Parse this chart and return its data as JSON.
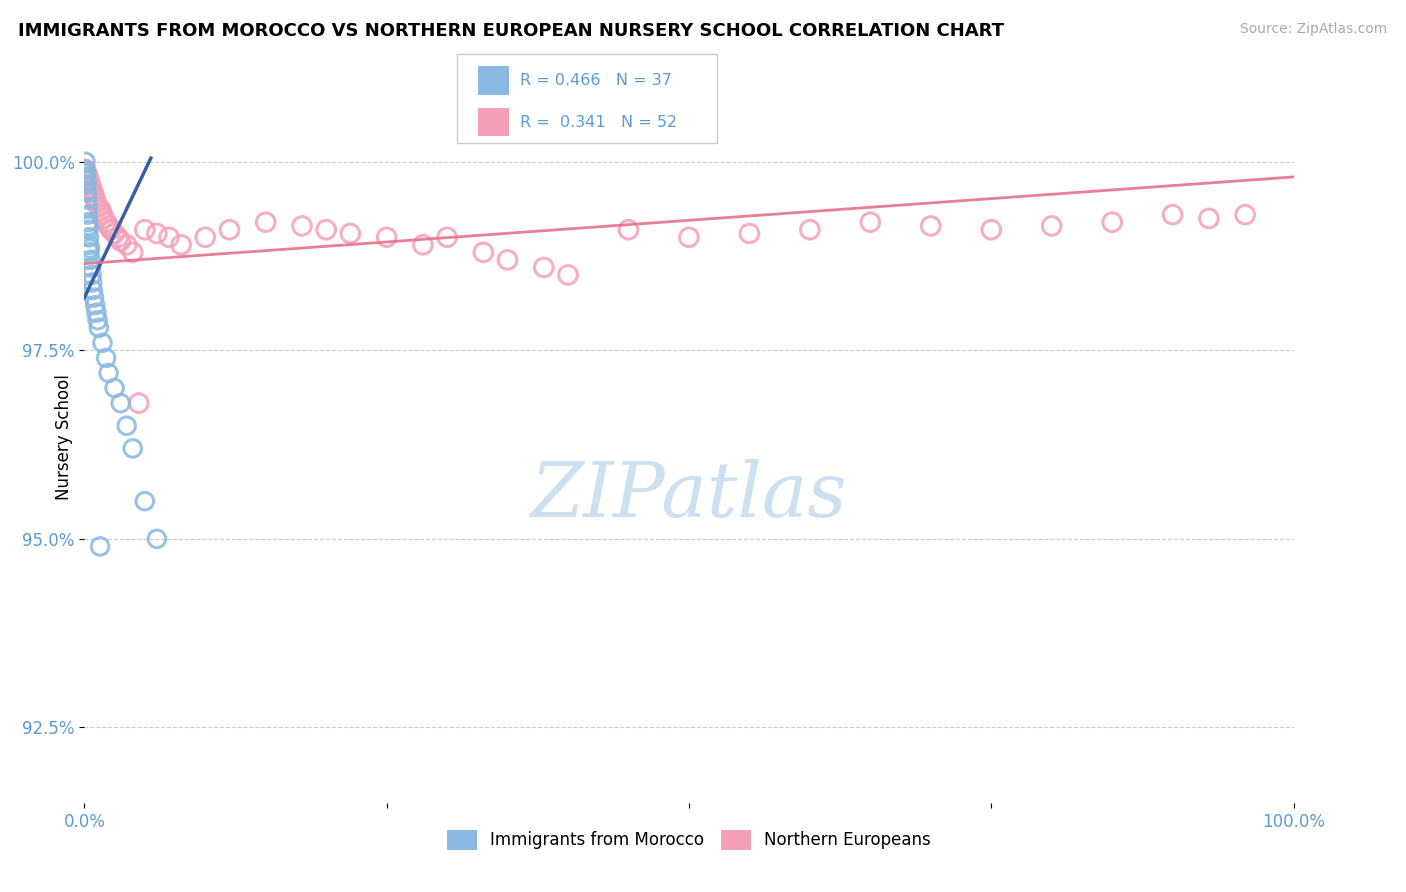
{
  "title": "IMMIGRANTS FROM MOROCCO VS NORTHERN EUROPEAN NURSERY SCHOOL CORRELATION CHART",
  "source": "Source: ZipAtlas.com",
  "ylabel": "Nursery School",
  "y_ticks": [
    92.5,
    95.0,
    97.5,
    100.0
  ],
  "y_tick_labels": [
    "92.5%",
    "95.0%",
    "97.5%",
    "100.0%"
  ],
  "x_range": [
    0.0,
    100.0
  ],
  "y_range": [
    91.5,
    101.2
  ],
  "blue_color": "#89b8e0",
  "pink_color": "#f4a0b8",
  "blue_line_color": "#3a5fa0",
  "pink_line_color": "#e8708a",
  "watermark_color": "#cce0f0",
  "title_color": "#000000",
  "source_color": "#aaaaaa",
  "tick_color": "#5b9bd5",
  "grid_color": "#cccccc",
  "blue_x": [
    0.05,
    0.08,
    0.1,
    0.12,
    0.15,
    0.18,
    0.2,
    0.22,
    0.25,
    0.28,
    0.3,
    0.32,
    0.35,
    0.38,
    0.4,
    0.42,
    0.45,
    0.5,
    0.55,
    0.6,
    0.65,
    0.7,
    0.8,
    0.9,
    1.0,
    1.1,
    1.2,
    1.5,
    1.8,
    2.0,
    2.5,
    3.0,
    3.5,
    4.0,
    5.0,
    6.0,
    1.3
  ],
  "blue_y": [
    99.9,
    99.8,
    100.0,
    99.85,
    99.7,
    99.75,
    99.6,
    99.5,
    99.4,
    99.3,
    99.2,
    99.15,
    99.1,
    99.0,
    98.9,
    98.8,
    98.85,
    98.7,
    98.6,
    98.5,
    98.4,
    98.3,
    98.2,
    98.1,
    98.0,
    97.9,
    97.8,
    97.6,
    97.4,
    97.2,
    97.0,
    96.8,
    96.5,
    96.2,
    95.5,
    95.0,
    94.9
  ],
  "pink_x": [
    0.1,
    0.2,
    0.3,
    0.4,
    0.5,
    0.6,
    0.7,
    0.8,
    0.9,
    1.0,
    1.2,
    1.4,
    1.5,
    1.6,
    1.8,
    2.0,
    2.2,
    2.5,
    2.8,
    3.0,
    3.5,
    4.0,
    5.0,
    6.0,
    7.0,
    8.0,
    10.0,
    12.0,
    15.0,
    18.0,
    20.0,
    22.0,
    25.0,
    28.0,
    30.0,
    33.0,
    35.0,
    38.0,
    40.0,
    45.0,
    50.0,
    55.0,
    60.0,
    65.0,
    70.0,
    75.0,
    80.0,
    85.0,
    90.0,
    93.0,
    96.0,
    4.5
  ],
  "pink_y": [
    99.9,
    99.85,
    99.8,
    99.75,
    99.7,
    99.65,
    99.6,
    99.55,
    99.5,
    99.45,
    99.4,
    99.35,
    99.3,
    99.25,
    99.2,
    99.15,
    99.1,
    99.05,
    99.0,
    98.95,
    98.9,
    98.8,
    99.1,
    99.05,
    99.0,
    98.9,
    99.0,
    99.1,
    99.2,
    99.15,
    99.1,
    99.05,
    99.0,
    98.9,
    99.0,
    98.8,
    98.7,
    98.6,
    98.5,
    99.1,
    99.0,
    99.05,
    99.1,
    99.2,
    99.15,
    99.1,
    99.15,
    99.2,
    99.3,
    99.25,
    99.3,
    96.8
  ]
}
